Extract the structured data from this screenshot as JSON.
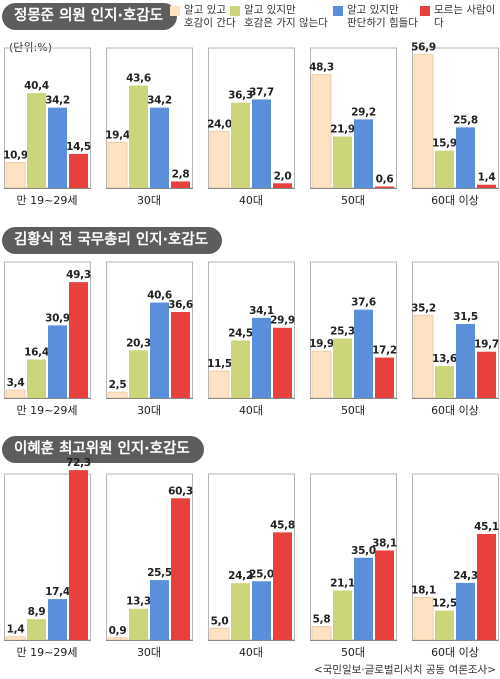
{
  "unit_label": "(단위:%)",
  "source": "<국민일보·글로벌리서치 공동 여론조사>",
  "legend": [
    {
      "line1": "알고 있고",
      "line2": "호감이 간다",
      "color": "#fde3c4"
    },
    {
      "line1": "알고 있지만",
      "line2": "호감은 가지 않는다",
      "color": "#cdd57a"
    },
    {
      "line1": "알고 있지만",
      "line2": "판단하기 힘들다",
      "color": "#5b8fd9"
    },
    {
      "line1": "모르는 사람이다",
      "line2": "",
      "color": "#e8403c"
    }
  ],
  "colors": {
    "favorable": "#fde3c4",
    "unfavorable": "#cdd57a",
    "undecided": "#5b8fd9",
    "unknown": "#e8403c",
    "title_bg": "#5d5d5d",
    "panel_border": "#b5b5b5"
  },
  "chart_data": [
    {
      "type": "bar",
      "title": "정몽준 의원 인지·호감도",
      "categories": [
        "만 19~29세",
        "30대",
        "40대",
        "50대",
        "60대 이상"
      ],
      "series": [
        {
          "name": "알고 있고 호감이 간다",
          "values": [
            10.9,
            19.4,
            24.0,
            48.3,
            56.9
          ]
        },
        {
          "name": "알고 있지만 호감은 가지 않는다",
          "values": [
            40.4,
            43.6,
            36.3,
            21.9,
            15.9
          ]
        },
        {
          "name": "알고 있지만 판단하기 힘들다",
          "values": [
            34.2,
            34.2,
            37.7,
            29.2,
            25.8
          ]
        },
        {
          "name": "모르는 사람이다",
          "values": [
            14.5,
            2.8,
            2.0,
            0.6,
            1.4
          ]
        }
      ],
      "value_labels": [
        [
          "10,9",
          "40,4",
          "34,2",
          "14,5"
        ],
        [
          "19,4",
          "43,6",
          "34,2",
          "2,8"
        ],
        [
          "24,0",
          "36,3",
          "37,7",
          "2,0"
        ],
        [
          "48,3",
          "21,9",
          "29,2",
          "0,6"
        ],
        [
          "56,9",
          "15,9",
          "25,8",
          "1,4"
        ]
      ]
    },
    {
      "type": "bar",
      "title": "김황식 전 국무총리 인지·호감도",
      "categories": [
        "만 19~29세",
        "30대",
        "40대",
        "50대",
        "60대 이상"
      ],
      "series": [
        {
          "name": "알고 있고 호감이 간다",
          "values": [
            3.4,
            2.5,
            11.5,
            19.9,
            35.2
          ]
        },
        {
          "name": "알고 있지만 호감은 가지 않는다",
          "values": [
            16.4,
            20.3,
            24.5,
            25.3,
            13.6
          ]
        },
        {
          "name": "알고 있지만 판단하기 힘들다",
          "values": [
            30.9,
            40.6,
            34.1,
            37.6,
            31.5
          ]
        },
        {
          "name": "모르는 사람이다",
          "values": [
            49.3,
            36.6,
            29.9,
            17.2,
            19.7
          ]
        }
      ],
      "value_labels": [
        [
          "3,4",
          "16,4",
          "30,9",
          "49,3"
        ],
        [
          "2,5",
          "20,3",
          "40,6",
          "36,6"
        ],
        [
          "11,5",
          "24,5",
          "34,1",
          "29,9"
        ],
        [
          "19,9",
          "25,3",
          "37,6",
          "17,2"
        ],
        [
          "35,2",
          "13,6",
          "31,5",
          "19,7"
        ]
      ]
    },
    {
      "type": "bar",
      "title": "이혜훈 최고위원 인지·호감도",
      "categories": [
        "만 19~29세",
        "30대",
        "40대",
        "50대",
        "60대 이상"
      ],
      "series": [
        {
          "name": "알고 있고 호감이 간다",
          "values": [
            1.4,
            0.9,
            5.0,
            5.8,
            18.1
          ]
        },
        {
          "name": "알고 있지만 호감은 가지 않는다",
          "values": [
            8.9,
            13.3,
            24.2,
            21.1,
            12.5
          ]
        },
        {
          "name": "알고 있지만 판단하기 힘들다",
          "values": [
            17.4,
            25.5,
            25.0,
            35.0,
            24.3
          ]
        },
        {
          "name": "모르는 사람이다",
          "values": [
            72.3,
            60.3,
            45.8,
            38.1,
            45.1
          ]
        }
      ],
      "value_labels": [
        [
          "1,4",
          "8,9",
          "17,4",
          "72,3"
        ],
        [
          "0,9",
          "13,3",
          "25,5",
          "60,3"
        ],
        [
          "5,0",
          "24,2",
          "25,0",
          "45,8"
        ],
        [
          "5,8",
          "21,1",
          "35,0",
          "38,1"
        ],
        [
          "18,1",
          "12,5",
          "24,3",
          "45,1"
        ]
      ]
    }
  ]
}
